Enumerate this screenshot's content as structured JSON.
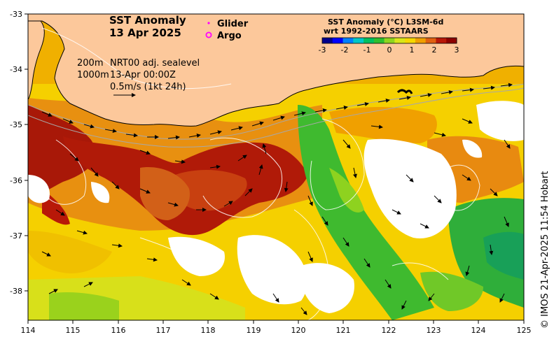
{
  "title": {
    "line1": "SST Anomaly",
    "line2": "13 Apr 2025"
  },
  "legend": {
    "glider": "Glider",
    "argo": "Argo",
    "glider_color": "#ff00ff",
    "argo_color": "#ff00ff"
  },
  "colorbar": {
    "line1": "SST Anomaly (°C) L3SM-6d",
    "line2": "wrt 1992-2016 SSTAARS",
    "ticks": [
      "-3",
      "-2",
      "-1",
      "0",
      "1",
      "2",
      "3"
    ],
    "colors": [
      "#00008c",
      "#0000ff",
      "#0080ff",
      "#00c8c8",
      "#00c060",
      "#2fbf2f",
      "#8fd61f",
      "#d8e61a",
      "#f5d800",
      "#f0a000",
      "#e06010",
      "#b81808",
      "#8c0000"
    ]
  },
  "annotations": {
    "depth1": "200m",
    "depth2": "1000m",
    "source": "NRT00 adj. sealevel",
    "date": "13-Apr 00:00Z",
    "scale": "0.5m/s (1kt 24h)"
  },
  "axes": {
    "x_ticks": [
      "114",
      "115",
      "116",
      "117",
      "118",
      "119",
      "120",
      "121",
      "122",
      "123",
      "124",
      "125"
    ],
    "y_ticks": [
      "-33",
      "-34",
      "-35",
      "-36",
      "-37",
      "-38"
    ]
  },
  "credit": "© IMOS 21-Apr-2025 11:54 Hobart",
  "colors": {
    "land": "#fcc89b",
    "coast": "#000000",
    "background": "#ffffff"
  }
}
